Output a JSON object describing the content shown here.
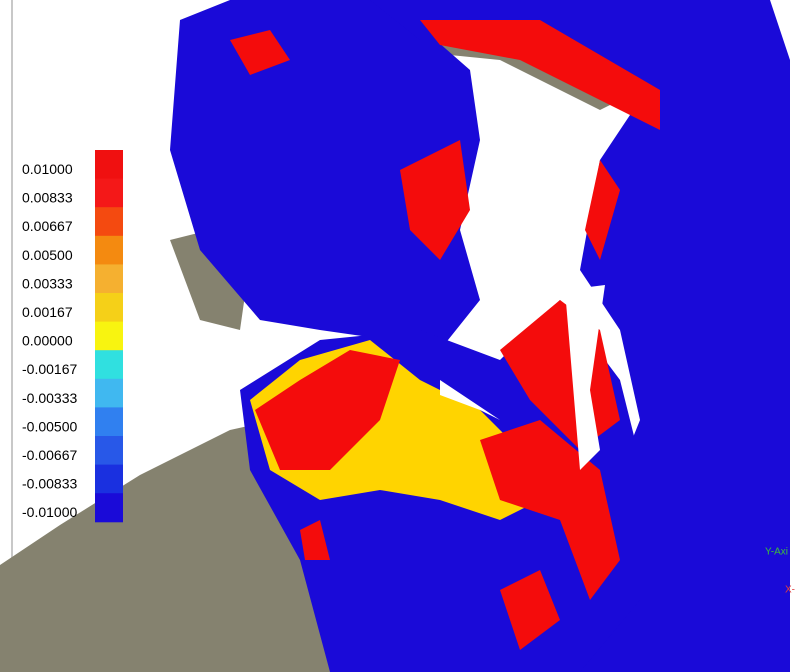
{
  "legend": {
    "labels": [
      "0.01000",
      "0.00833",
      "0.00667",
      "0.00500",
      "0.00333",
      "0.00167",
      "0.00000",
      "-0.00167",
      "-0.00333",
      "-0.00500",
      "-0.00667",
      "-0.00833",
      "-0.01000"
    ]
  },
  "axes": {
    "y_label": "Y-Axi",
    "x_label": "X-"
  }
}
